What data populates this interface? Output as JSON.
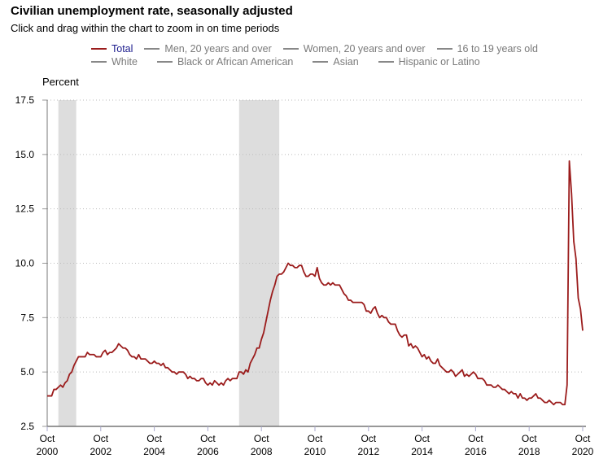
{
  "title": "Civilian unemployment rate, seasonally adjusted",
  "subtitle": "Click and drag within the chart to zoom in on time periods",
  "legend": {
    "row1": [
      "Total",
      "Men, 20 years and over",
      "Women, 20 years and over",
      "16 to 19 years old"
    ],
    "row2": [
      "White",
      "Black or African American",
      "Asian",
      "Hispanic or Latino"
    ]
  },
  "colors": {
    "total": "#9b1c1c",
    "inactive": "#888888",
    "recession": "#dddddd",
    "active_text": "#1a1a8c"
  },
  "chart_data": {
    "type": "line",
    "title": "Civilian unemployment rate, seasonally adjusted",
    "ylabel": "Percent",
    "xlabel": "",
    "ylim": [
      2.5,
      17.5
    ],
    "yticks": [
      "2.5",
      "5.0",
      "7.5",
      "10.0",
      "12.5",
      "15.0",
      "17.5"
    ],
    "xticks": [
      [
        "Oct",
        "2000"
      ],
      [
        "Oct",
        "2002"
      ],
      [
        "Oct",
        "2004"
      ],
      [
        "Oct",
        "2006"
      ],
      [
        "Oct",
        "2008"
      ],
      [
        "Oct",
        "2010"
      ],
      [
        "Oct",
        "2012"
      ],
      [
        "Oct",
        "2014"
      ],
      [
        "Oct",
        "2016"
      ],
      [
        "Oct",
        "2018"
      ],
      [
        "Oct",
        "2020"
      ]
    ],
    "x_start": "2000-10",
    "x_end": "2020-10",
    "grid": true,
    "recessions": [
      [
        "2001-03",
        "2001-11"
      ],
      [
        "2007-12",
        "2009-06"
      ]
    ],
    "series": [
      {
        "name": "Total",
        "start": "2000-10",
        "frequency": "monthly",
        "values": [
          3.9,
          3.9,
          3.9,
          4.2,
          4.2,
          4.3,
          4.4,
          4.3,
          4.5,
          4.6,
          4.9,
          5.0,
          5.3,
          5.5,
          5.7,
          5.7,
          5.7,
          5.7,
          5.9,
          5.8,
          5.8,
          5.8,
          5.7,
          5.7,
          5.7,
          5.9,
          6.0,
          5.8,
          5.9,
          5.9,
          6.0,
          6.1,
          6.3,
          6.2,
          6.1,
          6.1,
          6.0,
          5.8,
          5.7,
          5.7,
          5.6,
          5.8,
          5.6,
          5.6,
          5.6,
          5.5,
          5.4,
          5.4,
          5.5,
          5.4,
          5.4,
          5.3,
          5.4,
          5.2,
          5.2,
          5.1,
          5.0,
          5.0,
          4.9,
          5.0,
          5.0,
          5.0,
          4.9,
          4.7,
          4.8,
          4.7,
          4.7,
          4.6,
          4.6,
          4.7,
          4.7,
          4.5,
          4.4,
          4.5,
          4.4,
          4.6,
          4.5,
          4.4,
          4.5,
          4.4,
          4.6,
          4.7,
          4.6,
          4.7,
          4.7,
          4.7,
          5.0,
          5.0,
          4.9,
          5.1,
          5.0,
          5.4,
          5.6,
          5.8,
          6.1,
          6.1,
          6.5,
          6.8,
          7.3,
          7.8,
          8.3,
          8.7,
          9.0,
          9.4,
          9.5,
          9.5,
          9.6,
          9.8,
          10.0,
          9.9,
          9.9,
          9.8,
          9.8,
          9.9,
          9.9,
          9.6,
          9.4,
          9.4,
          9.5,
          9.5,
          9.4,
          9.8,
          9.3,
          9.1,
          9.0,
          9.0,
          9.1,
          9.0,
          9.1,
          9.0,
          9.0,
          9.0,
          8.8,
          8.6,
          8.5,
          8.3,
          8.3,
          8.2,
          8.2,
          8.2,
          8.2,
          8.2,
          8.1,
          7.8,
          7.8,
          7.7,
          7.9,
          8.0,
          7.7,
          7.5,
          7.6,
          7.5,
          7.5,
          7.3,
          7.2,
          7.2,
          7.2,
          6.9,
          6.7,
          6.6,
          6.7,
          6.7,
          6.2,
          6.3,
          6.1,
          6.2,
          6.1,
          5.9,
          5.7,
          5.8,
          5.6,
          5.7,
          5.5,
          5.4,
          5.4,
          5.6,
          5.3,
          5.2,
          5.1,
          5.0,
          5.0,
          5.1,
          5.0,
          4.8,
          4.9,
          5.0,
          5.1,
          4.8,
          4.9,
          4.8,
          4.9,
          5.0,
          4.9,
          4.7,
          4.7,
          4.7,
          4.6,
          4.4,
          4.4,
          4.4,
          4.3,
          4.3,
          4.4,
          4.3,
          4.2,
          4.2,
          4.1,
          4.0,
          4.1,
          4.0,
          4.0,
          3.8,
          4.0,
          3.8,
          3.8,
          3.7,
          3.8,
          3.8,
          3.9,
          4.0,
          3.8,
          3.8,
          3.7,
          3.6,
          3.6,
          3.7,
          3.6,
          3.5,
          3.6,
          3.6,
          3.6,
          3.5,
          3.5,
          4.4,
          14.7,
          13.2,
          11.0,
          10.2,
          8.4,
          7.9,
          6.9
        ]
      }
    ]
  }
}
